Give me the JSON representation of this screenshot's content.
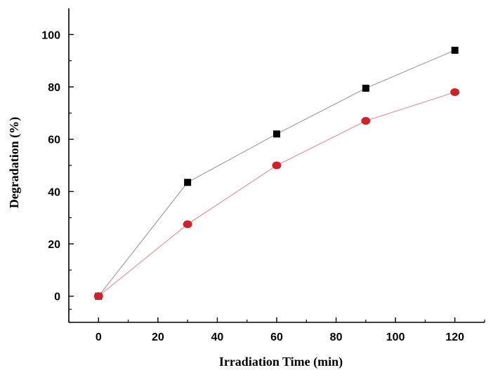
{
  "chart_data": {
    "type": "line",
    "title": "",
    "xlabel": "Irradiation Time (min)",
    "ylabel": "Degradation (%)",
    "xlim": [
      -10,
      130
    ],
    "ylim": [
      -10,
      110
    ],
    "x_ticks": [
      0,
      20,
      40,
      60,
      80,
      100,
      120
    ],
    "y_ticks": [
      0,
      20,
      40,
      60,
      80,
      100
    ],
    "grid": false,
    "legend": "none",
    "series": [
      {
        "marker": "square",
        "color": "#000000",
        "line_color": "#9a9a9a",
        "x": [
          0,
          30,
          60,
          90,
          120
        ],
        "y": [
          0,
          43.5,
          62,
          79.5,
          94
        ]
      },
      {
        "marker": "circle",
        "color": "#d0202a",
        "line_color": "#f08a8a",
        "x": [
          0,
          30,
          60,
          90,
          120
        ],
        "y": [
          0,
          27.5,
          50,
          67,
          78
        ]
      }
    ]
  }
}
